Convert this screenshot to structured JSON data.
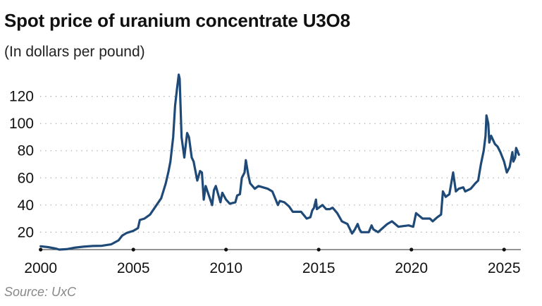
{
  "chart_data": {
    "type": "line",
    "title": "Spot price of uranium concentrate U3O8",
    "subtitle": "(In dollars per pound)",
    "source": "Source: UxC",
    "xlabel": "",
    "ylabel": "",
    "xlim": [
      2000,
      2025.8
    ],
    "ylim": [
      7,
      136
    ],
    "x_ticks": [
      2000,
      2005,
      2010,
      2015,
      2020,
      2025
    ],
    "y_ticks": [
      20,
      40,
      60,
      80,
      100,
      120
    ],
    "grid": "horizontal dotted",
    "line_color": "#1f4a78",
    "series": [
      {
        "x": [
          2000.0,
          2000.4,
          2000.8,
          2001.0,
          2001.4,
          2001.8,
          2002.3,
          2002.8,
          2003.3,
          2003.8,
          2004.2,
          2004.4,
          2004.65,
          2005.0,
          2005.25,
          2005.35,
          2005.6,
          2005.9,
          2006.25,
          2006.5,
          2006.75,
          2006.9,
          2007.0,
          2007.15,
          2007.25,
          2007.35,
          2007.45,
          2007.5,
          2007.6,
          2007.75,
          2007.9,
          2008.0,
          2008.15,
          2008.25,
          2008.45,
          2008.6,
          2008.7,
          2008.8,
          2008.9,
          2009.0,
          2009.25,
          2009.35,
          2009.45,
          2009.7,
          2009.8,
          2010.0,
          2010.2,
          2010.5,
          2010.6,
          2010.75,
          2010.85,
          2011.0,
          2011.07,
          2011.2,
          2011.3,
          2011.55,
          2011.75,
          2012.25,
          2012.5,
          2012.65,
          2012.8,
          2012.9,
          2013.15,
          2013.4,
          2013.6,
          2014.05,
          2014.35,
          2014.55,
          2014.65,
          2014.75,
          2014.85,
          2014.9,
          2015.2,
          2015.4,
          2015.6,
          2015.75,
          2016.0,
          2016.25,
          2016.55,
          2016.8,
          2016.95,
          2017.1,
          2017.2,
          2017.3,
          2017.7,
          2017.85,
          2017.95,
          2018.2,
          2018.45,
          2018.7,
          2018.95,
          2019.3,
          2019.85,
          2020.1,
          2020.25,
          2020.6,
          2021.0,
          2021.15,
          2021.4,
          2021.6,
          2021.7,
          2021.85,
          2022.05,
          2022.25,
          2022.4,
          2022.55,
          2022.8,
          2022.9,
          2023.2,
          2023.45,
          2023.6,
          2023.75,
          2023.9,
          2024.0,
          2024.05,
          2024.15,
          2024.2,
          2024.3,
          2024.5,
          2024.65,
          2024.8,
          2025.0,
          2025.15,
          2025.3,
          2025.45,
          2025.5,
          2025.6,
          2025.65,
          2025.8
        ],
        "values": [
          9.6,
          9,
          8,
          7.2,
          7.5,
          8.5,
          9.3,
          9.8,
          10,
          11,
          14,
          17.5,
          19.5,
          21,
          23,
          29,
          30,
          33,
          40,
          45,
          56,
          65,
          72,
          90,
          113,
          125,
          136,
          133,
          90,
          75,
          93,
          90,
          75,
          72,
          58,
          65,
          64,
          44,
          54,
          50,
          40,
          51,
          54,
          42,
          49,
          44,
          41,
          42,
          47,
          48,
          60,
          64,
          73,
          62,
          56,
          52,
          54,
          52,
          50,
          45,
          40,
          43,
          42,
          39,
          35,
          35,
          30,
          31,
          36,
          38,
          44,
          37,
          40,
          37,
          37,
          38,
          34,
          28,
          26,
          19,
          22,
          26,
          22,
          20,
          20,
          25,
          22,
          20,
          23,
          26,
          28,
          24,
          25,
          24,
          34,
          30,
          30,
          28,
          31,
          33,
          50,
          46,
          48,
          64,
          50,
          52,
          53,
          50,
          52,
          56,
          58,
          70,
          80,
          91,
          106,
          100,
          86,
          91,
          85,
          83,
          79,
          72,
          64,
          68,
          79,
          72,
          75,
          82,
          77
        ]
      }
    ]
  }
}
